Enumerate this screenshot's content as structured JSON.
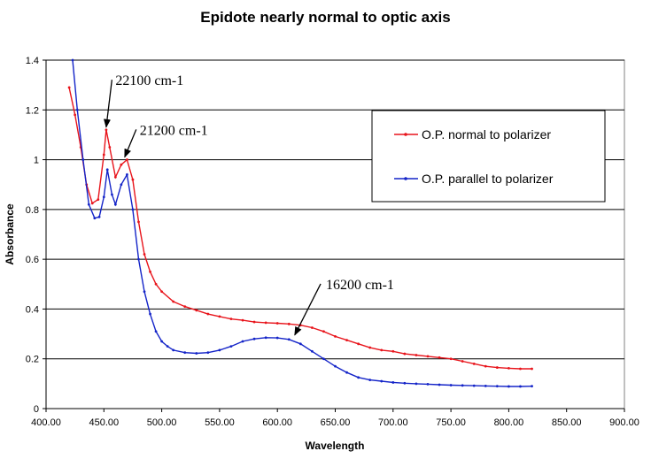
{
  "chart_data": {
    "type": "line",
    "title": "Epidote nearly normal to optic axis",
    "xlabel": "Wavelength",
    "ylabel": "Absorbance",
    "xlim": [
      400,
      900
    ],
    "ylim": [
      0,
      1.4
    ],
    "x_ticks": [
      "400.00",
      "450.00",
      "500.00",
      "550.00",
      "600.00",
      "650.00",
      "700.00",
      "750.00",
      "800.00",
      "850.00",
      "900.00"
    ],
    "y_ticks": [
      "0",
      "0.2",
      "0.4",
      "0.6",
      "0.8",
      "1",
      "1.2",
      "1.4"
    ],
    "grid": "horizontal",
    "legend_position": "top-right",
    "series": [
      {
        "name": "O.P. normal to polarizer",
        "color": "#e8141b",
        "x": [
          420,
          425,
          430,
          435,
          440,
          445,
          450,
          452,
          455,
          460,
          465,
          470,
          475,
          480,
          485,
          490,
          495,
          500,
          510,
          520,
          530,
          540,
          550,
          560,
          570,
          580,
          590,
          600,
          610,
          620,
          630,
          640,
          650,
          660,
          670,
          680,
          690,
          700,
          710,
          720,
          730,
          740,
          750,
          760,
          770,
          780,
          790,
          800,
          810,
          820
        ],
        "y": [
          1.29,
          1.18,
          1.05,
          0.9,
          0.825,
          0.84,
          1.02,
          1.12,
          1.05,
          0.93,
          0.98,
          1.0,
          0.92,
          0.75,
          0.62,
          0.55,
          0.5,
          0.47,
          0.43,
          0.41,
          0.395,
          0.38,
          0.37,
          0.36,
          0.355,
          0.348,
          0.345,
          0.343,
          0.34,
          0.335,
          0.325,
          0.31,
          0.29,
          0.275,
          0.26,
          0.245,
          0.235,
          0.23,
          0.22,
          0.215,
          0.21,
          0.205,
          0.2,
          0.19,
          0.18,
          0.17,
          0.165,
          0.162,
          0.16,
          0.16
        ]
      },
      {
        "name": "O.P. parallel to polarizer",
        "color": "#1424c8",
        "x": [
          423,
          427,
          432,
          437,
          442,
          446,
          450,
          453,
          457,
          460,
          465,
          470,
          475,
          480,
          485,
          490,
          495,
          500,
          505,
          510,
          520,
          530,
          540,
          550,
          560,
          570,
          580,
          590,
          600,
          610,
          620,
          630,
          640,
          650,
          660,
          670,
          680,
          690,
          700,
          710,
          720,
          730,
          740,
          750,
          760,
          770,
          780,
          790,
          800,
          810,
          820
        ],
        "y": [
          1.4,
          1.2,
          1.0,
          0.82,
          0.765,
          0.77,
          0.85,
          0.96,
          0.86,
          0.82,
          0.9,
          0.94,
          0.8,
          0.6,
          0.47,
          0.38,
          0.31,
          0.27,
          0.25,
          0.235,
          0.225,
          0.222,
          0.225,
          0.235,
          0.25,
          0.27,
          0.28,
          0.285,
          0.284,
          0.278,
          0.26,
          0.23,
          0.2,
          0.17,
          0.145,
          0.125,
          0.115,
          0.11,
          0.105,
          0.102,
          0.1,
          0.098,
          0.096,
          0.094,
          0.093,
          0.092,
          0.091,
          0.09,
          0.089,
          0.089,
          0.09
        ]
      }
    ],
    "annotations": [
      {
        "text": "22100 cm-1",
        "text_at": [
          460,
          1.3
        ],
        "arrow_to": [
          452,
          1.12
        ]
      },
      {
        "text": "21200 cm-1",
        "text_at": [
          481,
          1.1
        ],
        "arrow_to": [
          468,
          1.0
        ]
      },
      {
        "text": "16200 cm-1",
        "text_at": [
          642,
          0.48
        ],
        "arrow_to": [
          615,
          0.285
        ]
      }
    ]
  }
}
